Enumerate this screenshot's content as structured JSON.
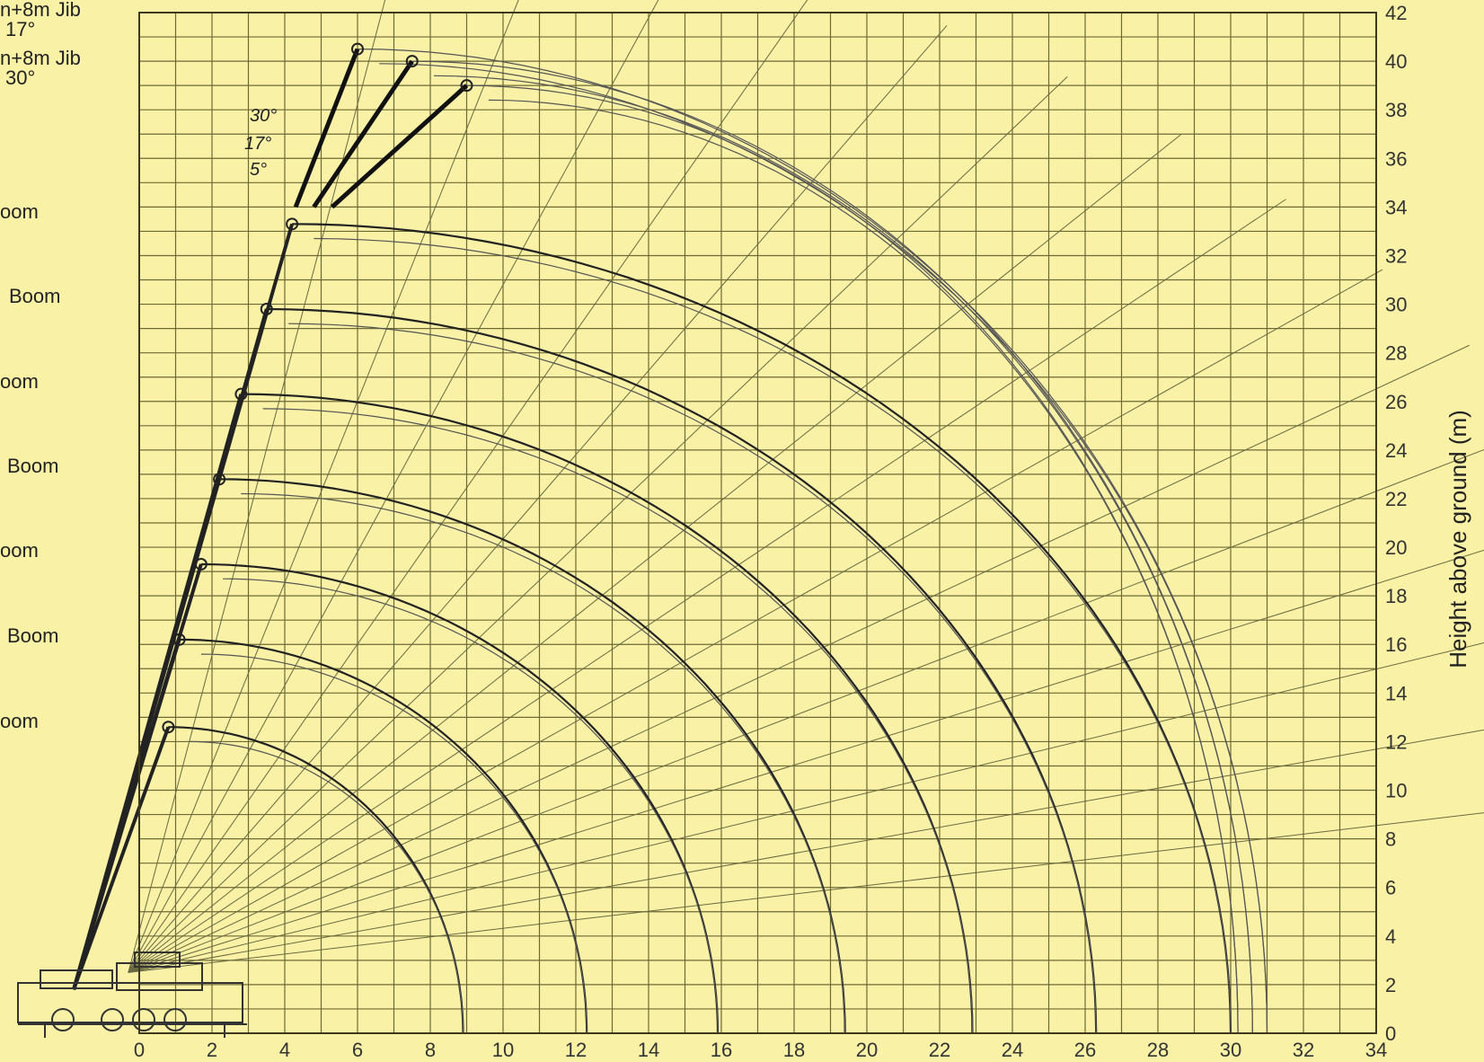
{
  "chart_data": {
    "type": "line",
    "title": "",
    "ylabel": "Height above ground (m)",
    "xlabel": "",
    "xlim": [
      0,
      34
    ],
    "ylim": [
      0,
      42
    ],
    "x_ticks": [
      "0",
      "2",
      "4",
      "6",
      "8",
      "10",
      "12",
      "14",
      "16",
      "18",
      "20",
      "22",
      "24",
      "26",
      "28",
      "30",
      "32",
      "34"
    ],
    "y_ticks": [
      "0",
      "2",
      "4",
      "6",
      "8",
      "10",
      "12",
      "14",
      "16",
      "18",
      "20",
      "22",
      "24",
      "26",
      "28",
      "30",
      "32",
      "34",
      "36",
      "38",
      "40",
      "42"
    ],
    "grid": true,
    "series": [
      {
        "name": "oom",
        "boom_tip": [
          0.8,
          12.6
        ],
        "max_radius": 8.9
      },
      {
        "name": "Boom",
        "boom_tip": [
          1.1,
          16.2
        ],
        "max_radius": 12.3
      },
      {
        "name": "oom",
        "boom_tip": [
          1.7,
          19.3
        ],
        "max_radius": 15.9
      },
      {
        "name": "Boom",
        "boom_tip": [
          2.2,
          22.8
        ],
        "max_radius": 19.4
      },
      {
        "name": "oom",
        "boom_tip": [
          2.8,
          26.3
        ],
        "max_radius": 22.9
      },
      {
        "name": "Boom",
        "boom_tip": [
          3.5,
          29.8
        ],
        "max_radius": 26.3
      },
      {
        "name": "oom",
        "boom_tip": [
          4.2,
          33.3
        ],
        "max_radius": 30.0
      },
      {
        "name": "n+8m Jib 30°",
        "jib_tip": [
          6.0,
          40.5
        ],
        "max_radius": 31.0
      },
      {
        "name": "n+8m Jib 17°",
        "jib_tip": [
          7.5,
          40.0
        ],
        "max_radius": 30.6
      },
      {
        "name": "5°",
        "jib_tip": [
          9.0,
          39.0
        ],
        "max_radius": 30.2
      }
    ],
    "jib_angles": [
      "30°",
      "17°",
      "5°"
    ]
  },
  "labels": {
    "jib_17": "n+8m  Jib",
    "jib_17_angle": "17°",
    "jib_30": "n+8m  Jib",
    "jib_30_angle": "30°",
    "boom_1": "oom",
    "boom_2": "Boom",
    "boom_3": "oom",
    "boom_4": "Boom",
    "boom_5": "oom",
    "boom_6": "Boom",
    "boom_7": "oom",
    "angle_30": "30°",
    "angle_17": "17°",
    "angle_5": "5°"
  },
  "colors": {
    "background": "#f8f1a6",
    "grid": "#6e6a35",
    "ink": "#222222"
  }
}
